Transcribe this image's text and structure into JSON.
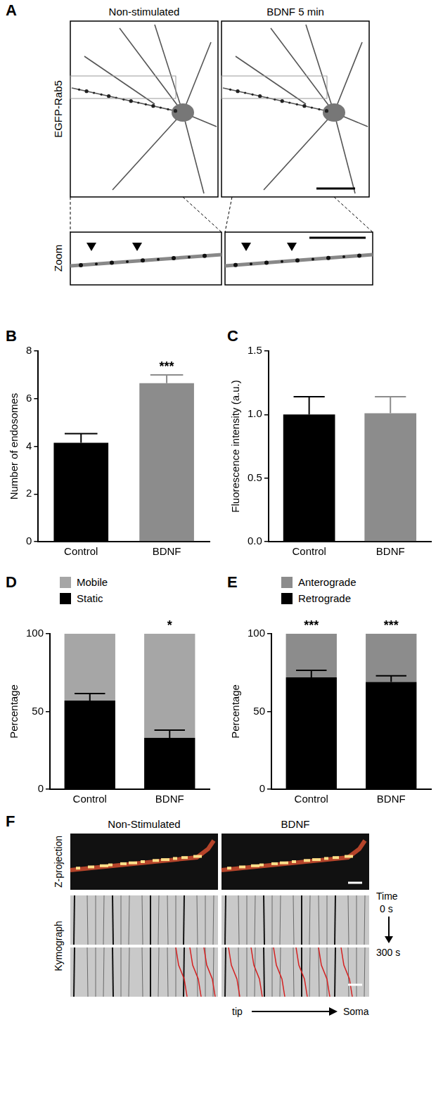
{
  "chart_data": [
    {
      "panel": "B",
      "type": "bar",
      "categories": [
        "Control",
        "BDNF"
      ],
      "values": [
        4.15,
        6.65
      ],
      "errors": [
        0.38,
        0.35
      ],
      "colors": [
        "#000000",
        "#8c8c8c"
      ],
      "ylabel": "Number of endosomes",
      "ylim": [
        0,
        8
      ],
      "yticks": [
        0,
        2,
        4,
        6,
        8
      ],
      "grid": false,
      "annotations": [
        {
          "category": "BDNF",
          "text": "***"
        }
      ]
    },
    {
      "panel": "C",
      "type": "bar",
      "categories": [
        "Control",
        "BDNF"
      ],
      "values": [
        1.0,
        1.01
      ],
      "errors": [
        0.14,
        0.13
      ],
      "colors": [
        "#000000",
        "#8c8c8c"
      ],
      "ylabel": "Fluorescence intensity (a.u.)",
      "ylim": [
        0,
        1.5
      ],
      "yticks": [
        {
          "value": 0,
          "label": "0.0"
        },
        0.5,
        {
          "value": 1,
          "label": "1.0"
        },
        1.5
      ],
      "grid": false
    },
    {
      "panel": "D",
      "type": "bar",
      "stacked": true,
      "categories": [
        "Control",
        "BDNF"
      ],
      "series": [
        {
          "name": "Static",
          "color": "#000000",
          "values": [
            57,
            33
          ],
          "errors": [
            4.5,
            5
          ]
        },
        {
          "name": "Mobile",
          "color": "#a6a6a6",
          "values": [
            43,
            67
          ]
        }
      ],
      "ylabel": "Percentage",
      "ylim": [
        0,
        100
      ],
      "yticks": [
        0,
        50,
        100
      ],
      "legend": "upper left",
      "grid": false,
      "annotations": [
        {
          "category": "BDNF",
          "text": "*"
        }
      ]
    },
    {
      "panel": "E",
      "type": "bar",
      "stacked": true,
      "categories": [
        "Control",
        "BDNF"
      ],
      "series": [
        {
          "name": "Retrograde",
          "color": "#000000",
          "values": [
            72,
            69
          ],
          "errors": [
            4.5,
            4
          ]
        },
        {
          "name": "Anterograde",
          "color": "#8c8c8c",
          "values": [
            28,
            31
          ]
        }
      ],
      "ylabel": "Percentage",
      "ylim": [
        0,
        100
      ],
      "yticks": [
        0,
        50,
        100
      ],
      "legend": "upper left",
      "grid": false,
      "annotations": [
        {
          "category": "Control",
          "text": "***"
        },
        {
          "category": "BDNF",
          "text": "***"
        }
      ]
    }
  ],
  "panel_A": {
    "label": "A",
    "titles": [
      "Non-stimulated",
      "BDNF 5 min"
    ],
    "row_label": "EGFP-Rab5",
    "zoom_label": "Zoom"
  },
  "panel_F": {
    "label": "F",
    "titles": [
      "Non-Stimulated",
      "BDNF"
    ],
    "row_labels": [
      "Z-projection",
      "Kymograph"
    ],
    "time_label": "Time",
    "time_start": "0 s",
    "time_end": "300 s",
    "axis_start": "tip",
    "axis_end": "Soma"
  }
}
